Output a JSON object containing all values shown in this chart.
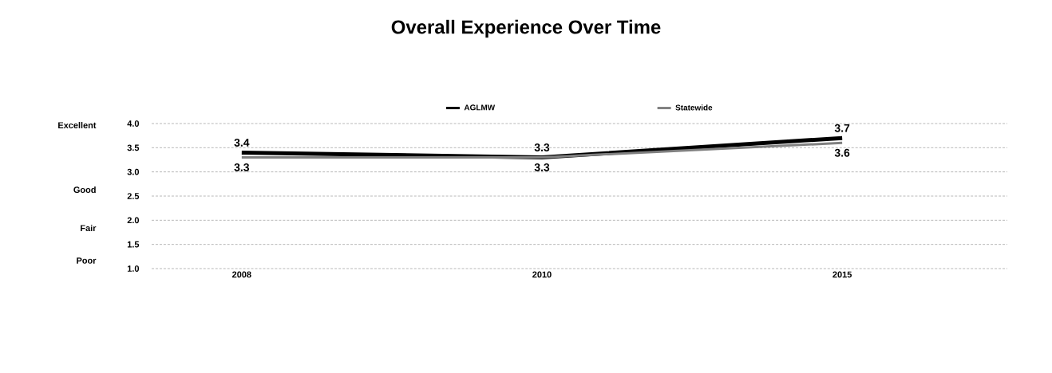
{
  "chart_data": {
    "type": "line",
    "title": "Overall Experience Over Time",
    "categories": [
      "2008",
      "2010",
      "2015"
    ],
    "series": [
      {
        "name": "AGLMW",
        "color": "#000000",
        "values": [
          3.4,
          3.3,
          3.7
        ]
      },
      {
        "name": "Statewide",
        "color": "#808080",
        "values": [
          3.3,
          3.3,
          3.6
        ]
      }
    ],
    "data_labels": true,
    "legend": "top",
    "grid": "y",
    "marker": "none",
    "line_style": "solid",
    "ylim": [
      1,
      4
    ],
    "yticks": [
      {
        "value": 1,
        "label": "1.0"
      },
      {
        "value": 1.5,
        "label": "1.5"
      },
      {
        "value": 2,
        "label": "2.0"
      },
      {
        "value": 2.5,
        "label": "2.5"
      },
      {
        "value": 3,
        "label": "3.0"
      },
      {
        "value": 3.5,
        "label": "3.5"
      },
      {
        "value": 4,
        "label": "4.0"
      }
    ],
    "annotations": [
      "Excellent",
      "Good",
      "Fair",
      "Poor"
    ]
  }
}
